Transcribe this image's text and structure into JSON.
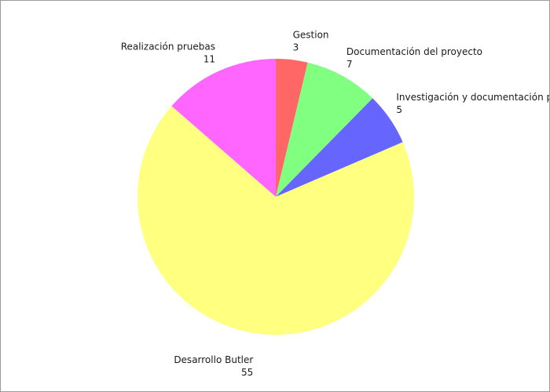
{
  "chart_data": {
    "type": "pie",
    "title": "",
    "slices": [
      {
        "label": "Gestion",
        "value": 3,
        "color": "#ff6666"
      },
      {
        "label": "Documentación del proyecto",
        "value": 7,
        "color": "#80ff80"
      },
      {
        "label": "Investigación y documentación previa",
        "value": 5,
        "color": "#6666ff"
      },
      {
        "label": "Desarrollo Butler",
        "value": 55,
        "color": "#ffff80"
      },
      {
        "label": "Realización pruebas",
        "value": 11,
        "color": "#ff66ff"
      }
    ],
    "start_angle": "12 o'clock",
    "direction": "clockwise",
    "legend": "none"
  }
}
